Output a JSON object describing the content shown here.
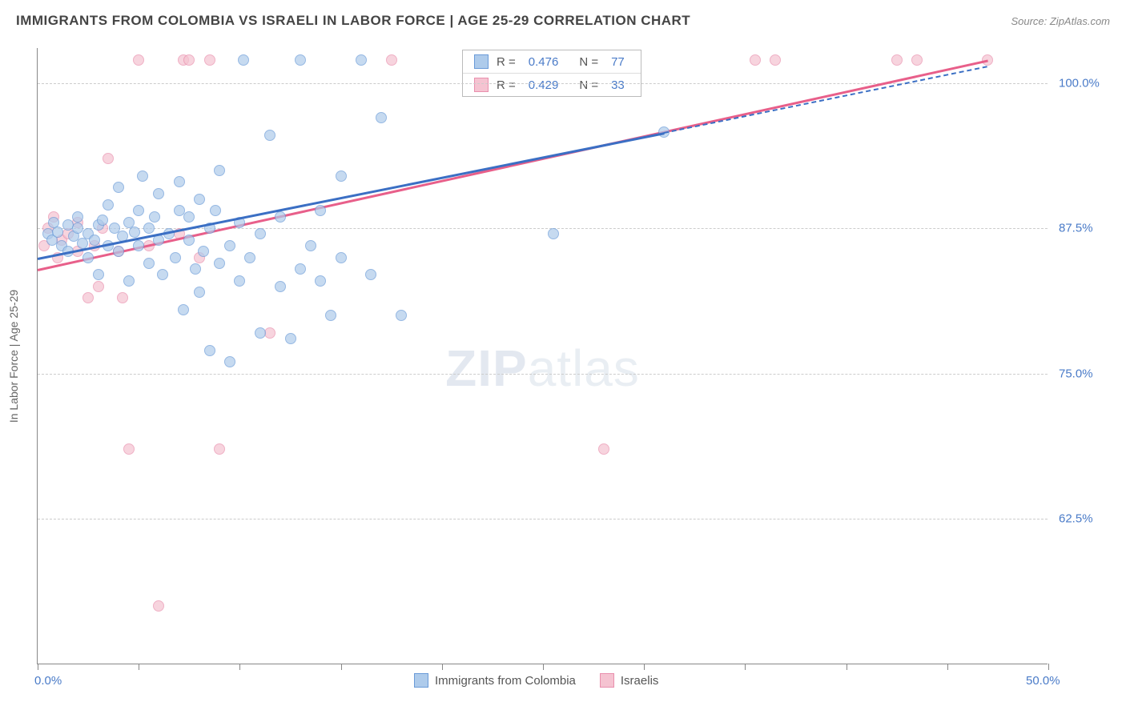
{
  "title": "IMMIGRANTS FROM COLOMBIA VS ISRAELI IN LABOR FORCE | AGE 25-29 CORRELATION CHART",
  "source_label": "Source: ZipAtlas.com",
  "ylabel": "In Labor Force | Age 25-29",
  "watermark_a": "ZIP",
  "watermark_b": "atlas",
  "chart": {
    "type": "scatter",
    "xlim": [
      0,
      50
    ],
    "ylim": [
      50,
      103
    ],
    "x_ticks": [
      0,
      5,
      10,
      15,
      20,
      25,
      30,
      35,
      40,
      45,
      50
    ],
    "x_tick_labels": {
      "0": "0.0%",
      "50": "50.0%"
    },
    "y_gridlines": [
      62.5,
      75.0,
      87.5,
      100.0
    ],
    "y_tick_labels": [
      "62.5%",
      "75.0%",
      "87.5%",
      "100.0%"
    ],
    "background_color": "#ffffff",
    "grid_color": "#cccccc",
    "marker_radius": 7,
    "marker_opacity": 0.7,
    "series": [
      {
        "id": "colombia",
        "label": "Immigrants from Colombia",
        "fill": "#aecbeb",
        "stroke": "#6a9bd8",
        "line_color": "#3b6fc4",
        "R": "0.476",
        "N": "77",
        "trend": {
          "x1": 0,
          "y1": 85.0,
          "x2": 31,
          "y2": 95.8,
          "ext_x2": 47,
          "ext_y2": 101.5
        },
        "points": [
          [
            0.5,
            87.0
          ],
          [
            0.7,
            86.5
          ],
          [
            0.8,
            88.0
          ],
          [
            1.0,
            87.2
          ],
          [
            1.2,
            86.0
          ],
          [
            1.5,
            87.8
          ],
          [
            1.5,
            85.5
          ],
          [
            1.8,
            86.8
          ],
          [
            2.0,
            87.5
          ],
          [
            2.0,
            88.5
          ],
          [
            2.2,
            86.2
          ],
          [
            2.5,
            87.0
          ],
          [
            2.5,
            85.0
          ],
          [
            2.8,
            86.5
          ],
          [
            3.0,
            87.8
          ],
          [
            3.0,
            83.5
          ],
          [
            3.2,
            88.2
          ],
          [
            3.5,
            86.0
          ],
          [
            3.5,
            89.5
          ],
          [
            3.8,
            87.5
          ],
          [
            4.0,
            85.5
          ],
          [
            4.0,
            91.0
          ],
          [
            4.2,
            86.8
          ],
          [
            4.5,
            88.0
          ],
          [
            4.5,
            83.0
          ],
          [
            4.8,
            87.2
          ],
          [
            5.0,
            89.0
          ],
          [
            5.0,
            86.0
          ],
          [
            5.2,
            92.0
          ],
          [
            5.5,
            87.5
          ],
          [
            5.5,
            84.5
          ],
          [
            5.8,
            88.5
          ],
          [
            6.0,
            86.5
          ],
          [
            6.0,
            90.5
          ],
          [
            6.2,
            83.5
          ],
          [
            6.5,
            87.0
          ],
          [
            6.8,
            85.0
          ],
          [
            7.0,
            89.0
          ],
          [
            7.0,
            91.5
          ],
          [
            7.2,
            80.5
          ],
          [
            7.5,
            86.5
          ],
          [
            7.5,
            88.5
          ],
          [
            7.8,
            84.0
          ],
          [
            8.0,
            90.0
          ],
          [
            8.0,
            82.0
          ],
          [
            8.2,
            85.5
          ],
          [
            8.5,
            87.5
          ],
          [
            8.5,
            77.0
          ],
          [
            8.8,
            89.0
          ],
          [
            9.0,
            84.5
          ],
          [
            9.0,
            92.5
          ],
          [
            9.5,
            86.0
          ],
          [
            9.5,
            76.0
          ],
          [
            10.0,
            88.0
          ],
          [
            10.0,
            83.0
          ],
          [
            10.2,
            102.0
          ],
          [
            10.5,
            85.0
          ],
          [
            11.0,
            78.5
          ],
          [
            11.0,
            87.0
          ],
          [
            11.5,
            95.5
          ],
          [
            12.0,
            82.5
          ],
          [
            12.0,
            88.5
          ],
          [
            12.5,
            78.0
          ],
          [
            13.0,
            84.0
          ],
          [
            13.0,
            102.0
          ],
          [
            13.5,
            86.0
          ],
          [
            14.0,
            83.0
          ],
          [
            14.0,
            89.0
          ],
          [
            14.5,
            80.0
          ],
          [
            15.0,
            85.0
          ],
          [
            15.0,
            92.0
          ],
          [
            16.0,
            102.0
          ],
          [
            16.5,
            83.5
          ],
          [
            17.0,
            97.0
          ],
          [
            18.0,
            80.0
          ],
          [
            25.5,
            87.0
          ],
          [
            31.0,
            95.8
          ]
        ]
      },
      {
        "id": "israeli",
        "label": "Israelis",
        "fill": "#f5c3d1",
        "stroke": "#e98fad",
        "line_color": "#e85f8a",
        "R": "0.429",
        "N": "33",
        "trend": {
          "x1": 0,
          "y1": 84.0,
          "x2": 47,
          "y2": 102.0
        },
        "points": [
          [
            0.3,
            86.0
          ],
          [
            0.5,
            87.5
          ],
          [
            0.8,
            88.5
          ],
          [
            1.0,
            85.0
          ],
          [
            1.2,
            86.5
          ],
          [
            1.5,
            87.0
          ],
          [
            2.0,
            85.5
          ],
          [
            2.0,
            88.0
          ],
          [
            2.5,
            81.5
          ],
          [
            2.8,
            86.0
          ],
          [
            3.0,
            82.5
          ],
          [
            3.2,
            87.5
          ],
          [
            3.5,
            93.5
          ],
          [
            4.0,
            85.5
          ],
          [
            4.2,
            81.5
          ],
          [
            4.5,
            68.5
          ],
          [
            5.0,
            102.0
          ],
          [
            5.5,
            86.0
          ],
          [
            6.0,
            55.0
          ],
          [
            7.0,
            87.0
          ],
          [
            7.2,
            102.0
          ],
          [
            7.5,
            102.0
          ],
          [
            8.0,
            85.0
          ],
          [
            8.5,
            102.0
          ],
          [
            9.0,
            68.5
          ],
          [
            11.5,
            78.5
          ],
          [
            17.5,
            102.0
          ],
          [
            35.5,
            102.0
          ],
          [
            36.5,
            102.0
          ],
          [
            42.5,
            102.0
          ],
          [
            43.5,
            102.0
          ],
          [
            47.0,
            102.0
          ],
          [
            28.0,
            68.5
          ]
        ]
      }
    ]
  },
  "stats_box": {
    "r_label": "R =",
    "n_label": "N ="
  }
}
